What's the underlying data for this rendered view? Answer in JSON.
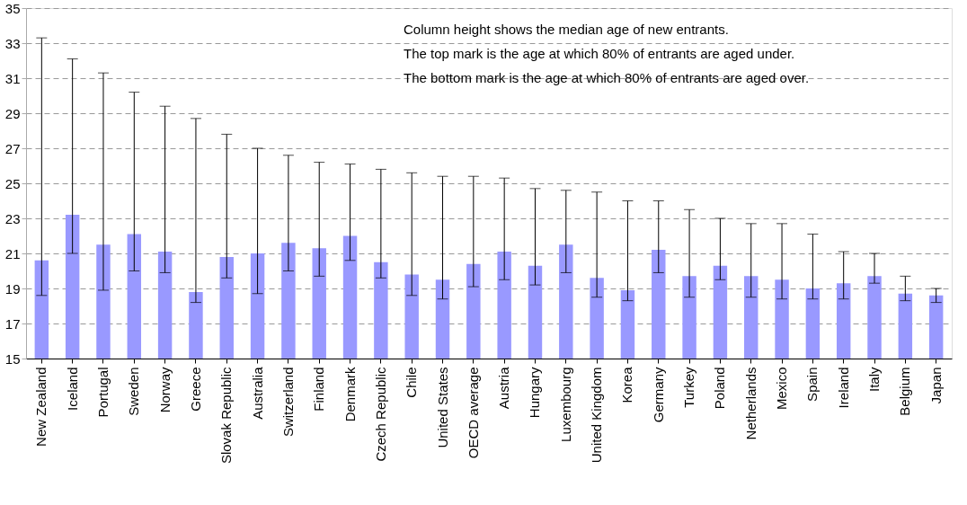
{
  "chart_data": {
    "type": "bar",
    "categories": [
      "New Zealand",
      "Iceland",
      "Portugal",
      "Sweden",
      "Norway",
      "Greece",
      "Slovak Republic",
      "Australia",
      "Switzerland",
      "Finland",
      "Denmark",
      "Czech Republic",
      "Chile",
      "United States",
      "OECD average",
      "Austria",
      "Hungary",
      "Luxembourg",
      "United Kingdom",
      "Korea",
      "Germany",
      "Turkey",
      "Poland",
      "Netherlands",
      "Mexico",
      "Spain",
      "Ireland",
      "Italy",
      "Belgium",
      "Japan"
    ],
    "values": [
      20.6,
      23.2,
      21.5,
      22.1,
      21.1,
      18.8,
      20.8,
      21.0,
      21.6,
      21.3,
      22.0,
      20.5,
      19.8,
      19.5,
      20.4,
      21.1,
      20.3,
      21.5,
      19.6,
      18.9,
      21.2,
      19.7,
      20.3,
      19.7,
      19.5,
      19.0,
      19.3,
      19.7,
      18.7,
      18.6
    ],
    "errors": [
      [
        18.6,
        33.3
      ],
      [
        21.0,
        32.1
      ],
      [
        18.9,
        31.3
      ],
      [
        20.0,
        30.2
      ],
      [
        19.9,
        29.4
      ],
      [
        18.2,
        28.7
      ],
      [
        19.6,
        27.8
      ],
      [
        18.7,
        27.0
      ],
      [
        20.0,
        26.6
      ],
      [
        19.7,
        26.2
      ],
      [
        20.6,
        26.1
      ],
      [
        19.6,
        25.8
      ],
      [
        18.6,
        25.6
      ],
      [
        18.4,
        25.4
      ],
      [
        19.1,
        25.4
      ],
      [
        19.5,
        25.3
      ],
      [
        19.2,
        24.7
      ],
      [
        19.9,
        24.6
      ],
      [
        18.5,
        24.5
      ],
      [
        18.3,
        24.0
      ],
      [
        19.9,
        24.0
      ],
      [
        18.5,
        23.5
      ],
      [
        19.5,
        23.0
      ],
      [
        18.5,
        22.7
      ],
      [
        18.4,
        22.7
      ],
      [
        18.4,
        22.1
      ],
      [
        18.4,
        21.1
      ],
      [
        19.3,
        21.0
      ],
      [
        18.3,
        19.7
      ],
      [
        18.2,
        19.0
      ]
    ],
    "color": "#9999ff",
    "ylim": [
      15,
      35
    ],
    "yticks": [
      15,
      17,
      19,
      21,
      23,
      25,
      27,
      29,
      31,
      33,
      35
    ],
    "grid": "y",
    "annotations": [
      "Column height shows the median age of new entrants.",
      "The top mark is the age at which 80% of entrants are aged under.",
      "The bottom mark is the age at which 80% of entrants are aged over."
    ]
  }
}
